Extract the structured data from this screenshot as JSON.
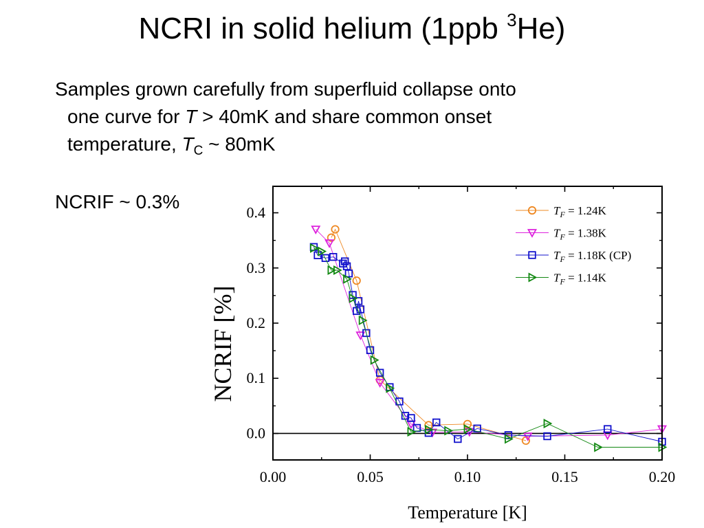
{
  "slide": {
    "title_main": "NCRI in solid helium (1ppb ",
    "title_sup": "3",
    "title_tail": "He)",
    "bullet1": {
      "line1": "Samples grown carefully from superfluid collapse onto",
      "line2_pre": "one curve for ",
      "line2_T": "T",
      "line2_post": " > 40mK and share common onset",
      "line3_pre": "temperature, ",
      "line3_T": "T",
      "line3_sub": "C",
      "line3_post": " ~ 80mK"
    },
    "bullet2": "NCRIF ~ 0.3%"
  },
  "chart_data": {
    "type": "scatter",
    "xlabel": "Temperature [K]",
    "ylabel": "NCRIF [%]",
    "xlim": [
      0.0,
      0.2
    ],
    "ylim": [
      -0.048,
      0.448
    ],
    "xticks": [
      0.0,
      0.05,
      0.1,
      0.15,
      0.2
    ],
    "xtick_labels": [
      "0.00",
      "0.05",
      "0.10",
      "0.15",
      "0.20"
    ],
    "yticks": [
      0.0,
      0.1,
      0.2,
      0.3,
      0.4
    ],
    "ytick_labels": [
      "0.0",
      "0.1",
      "0.2",
      "0.3",
      "0.4"
    ],
    "zero_line": true,
    "legend_position": "top-right",
    "series": [
      {
        "name": "T_F = 1.24K",
        "legend_T": "T",
        "legend_sub": "F",
        "legend_rest": " = 1.24K",
        "marker": "circle",
        "color": "#ee8822",
        "x": [
          0.03,
          0.032,
          0.043,
          0.055,
          0.08,
          0.1,
          0.13
        ],
        "y": [
          0.355,
          0.37,
          0.277,
          0.097,
          0.015,
          0.017,
          -0.013
        ]
      },
      {
        "name": "T_F = 1.38K",
        "legend_T": "T",
        "legend_sub": "F",
        "legend_rest": " = 1.38K",
        "marker": "triangle-down",
        "color": "#dd22dd",
        "x": [
          0.022,
          0.029,
          0.045,
          0.055,
          0.071,
          0.082,
          0.101,
          0.131,
          0.172,
          0.2
        ],
        "y": [
          0.37,
          0.345,
          0.178,
          0.092,
          0.017,
          0.002,
          0.003,
          -0.005,
          -0.003,
          0.008
        ]
      },
      {
        "name": "T_F = 1.18K (CP)",
        "legend_T": "T",
        "legend_sub": "F",
        "legend_rest": " = 1.18K (CP)",
        "marker": "square",
        "color": "#1111cc",
        "x": [
          0.021,
          0.023,
          0.027,
          0.031,
          0.036,
          0.037,
          0.038,
          0.039,
          0.041,
          0.043,
          0.044,
          0.045,
          0.048,
          0.05,
          0.055,
          0.06,
          0.065,
          0.068,
          0.071,
          0.074,
          0.08,
          0.084,
          0.095,
          0.105,
          0.121,
          0.141,
          0.172,
          0.2
        ],
        "y": [
          0.338,
          0.323,
          0.318,
          0.32,
          0.308,
          0.312,
          0.303,
          0.29,
          0.251,
          0.222,
          0.24,
          0.225,
          0.182,
          0.151,
          0.11,
          0.084,
          0.058,
          0.032,
          0.028,
          0.01,
          0.001,
          0.02,
          -0.01,
          0.009,
          -0.003,
          -0.005,
          0.008,
          -0.015
        ]
      },
      {
        "name": "T_F = 1.14K",
        "legend_T": "T",
        "legend_sub": "F",
        "legend_rest": " = 1.14K",
        "marker": "triangle-right",
        "color": "#118811",
        "x": [
          0.021,
          0.025,
          0.03,
          0.033,
          0.038,
          0.041,
          0.046,
          0.052,
          0.06,
          0.071,
          0.08,
          0.09,
          0.1,
          0.121,
          0.141,
          0.167,
          0.2
        ],
        "y": [
          0.336,
          0.33,
          0.296,
          0.296,
          0.28,
          0.245,
          0.205,
          0.133,
          0.082,
          0.003,
          0.007,
          0.005,
          0.008,
          -0.01,
          0.018,
          -0.025,
          -0.025
        ]
      }
    ]
  }
}
